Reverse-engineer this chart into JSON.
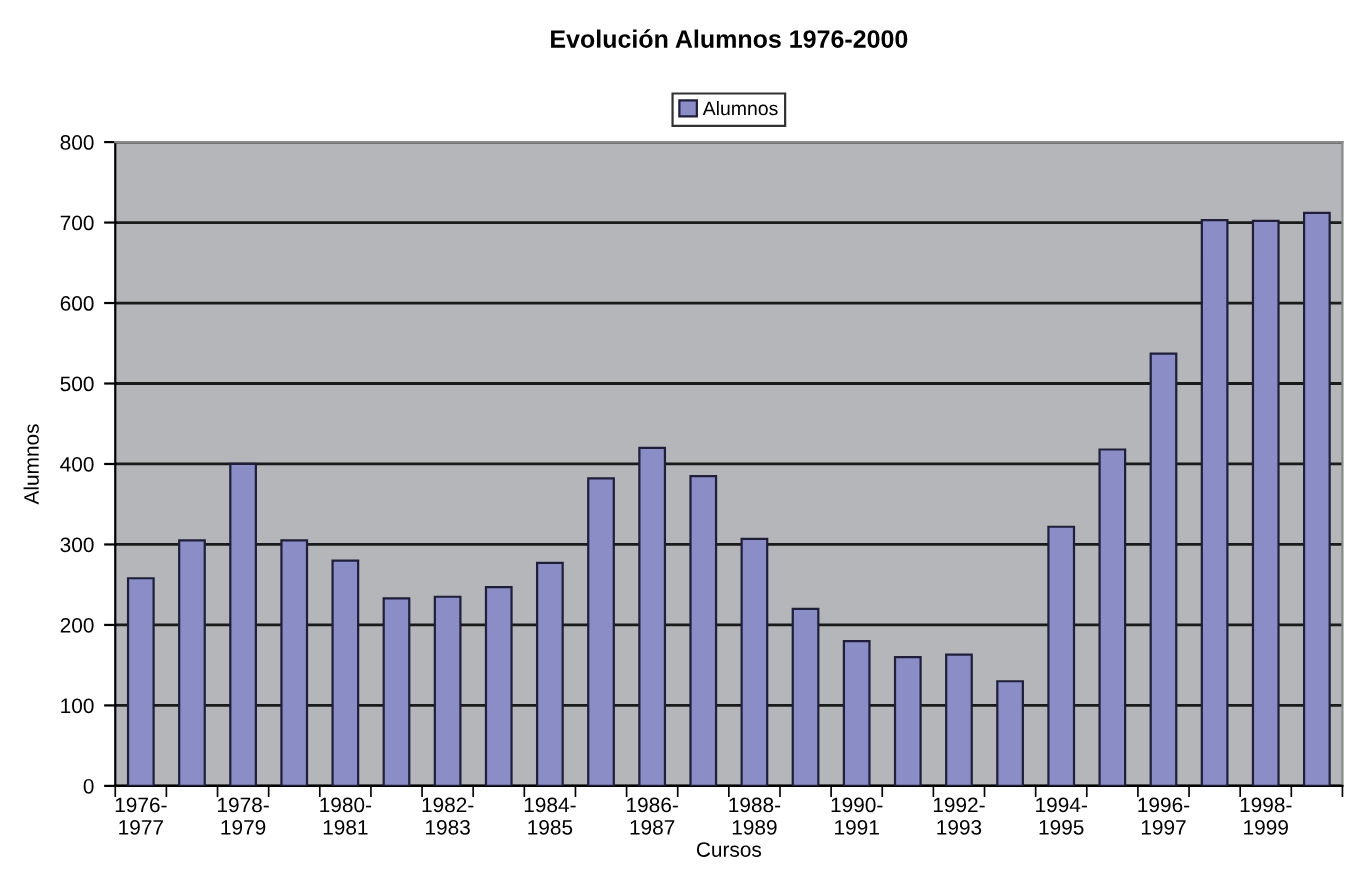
{
  "chart_data": {
    "type": "bar",
    "title": "Evolución Alumnos 1976-2000",
    "xlabel": "Cursos",
    "ylabel": "Alumnos",
    "categories": [
      "1976-1977",
      null,
      "1978-1979",
      null,
      "1980-1981",
      null,
      "1982-1983",
      null,
      "1984-1985",
      null,
      "1986-1987",
      null,
      "1988-1989",
      null,
      "1990-1991",
      null,
      "1992-1993",
      null,
      "1994-1995",
      null,
      "1996-1997",
      null,
      "1998-1999",
      null
    ],
    "series": [
      {
        "name": "Alumnos",
        "color": "#8b8dc6",
        "values": [
          258,
          305,
          400,
          305,
          280,
          233,
          235,
          247,
          277,
          382,
          420,
          385,
          307,
          220,
          180,
          160,
          163,
          130,
          322,
          418,
          537,
          703,
          702,
          712
        ]
      }
    ],
    "ylim": [
      0,
      800
    ],
    "yticks": [
      0,
      100,
      200,
      300,
      400,
      500,
      600,
      700,
      800
    ],
    "grid": "y",
    "legend": "top"
  }
}
